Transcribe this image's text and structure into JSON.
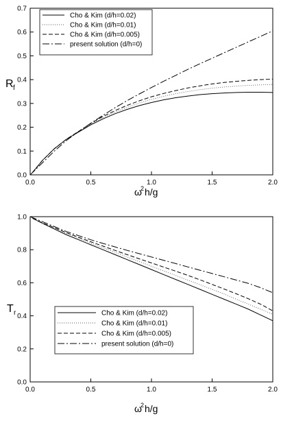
{
  "chart_data": [
    {
      "type": "line",
      "ylabel": "R_f",
      "xlabel": "ω^2h/g",
      "xlim": [
        0.0,
        2.0
      ],
      "ylim": [
        0.0,
        0.7
      ],
      "xticks": [
        "0.0",
        "0.5",
        "1.0",
        "1.5",
        "2.0"
      ],
      "yticks": [
        "0.0",
        "0.1",
        "0.2",
        "0.3",
        "0.4",
        "0.5",
        "0.6",
        "0.7"
      ],
      "legend_position": "top-left",
      "grid": false,
      "series": [
        {
          "name": "Cho & Kim (d/h=0.02)",
          "style": "solid",
          "x": [
            0.02,
            0.1,
            0.2,
            0.3,
            0.4,
            0.5,
            0.6,
            0.7,
            0.8,
            0.9,
            1.0,
            1.1,
            1.2,
            1.3,
            1.4,
            1.5,
            1.6,
            1.7,
            1.8,
            1.9,
            2.0
          ],
          "y": [
            0.01,
            0.06,
            0.11,
            0.15,
            0.18,
            0.21,
            0.235,
            0.257,
            0.275,
            0.291,
            0.304,
            0.315,
            0.324,
            0.331,
            0.337,
            0.341,
            0.344,
            0.346,
            0.347,
            0.347,
            0.346
          ]
        },
        {
          "name": "Cho & Kim (d/h=0.01)",
          "style": "dotted",
          "x": [
            0.02,
            0.1,
            0.2,
            0.3,
            0.4,
            0.5,
            0.6,
            0.7,
            0.8,
            0.9,
            1.0,
            1.1,
            1.2,
            1.3,
            1.4,
            1.5,
            1.6,
            1.7,
            1.8,
            1.9,
            2.0
          ],
          "y": [
            0.01,
            0.06,
            0.11,
            0.15,
            0.182,
            0.213,
            0.24,
            0.264,
            0.284,
            0.302,
            0.317,
            0.33,
            0.341,
            0.35,
            0.358,
            0.364,
            0.369,
            0.373,
            0.376,
            0.378,
            0.38
          ]
        },
        {
          "name": "Cho & Kim (d/h=0.005)",
          "style": "dashed",
          "x": [
            0.02,
            0.1,
            0.2,
            0.3,
            0.4,
            0.5,
            0.6,
            0.7,
            0.8,
            0.9,
            1.0,
            1.1,
            1.2,
            1.3,
            1.4,
            1.5,
            1.6,
            1.7,
            1.8,
            1.9,
            2.0
          ],
          "y": [
            0.01,
            0.06,
            0.11,
            0.15,
            0.183,
            0.216,
            0.245,
            0.27,
            0.292,
            0.311,
            0.328,
            0.342,
            0.354,
            0.365,
            0.374,
            0.382,
            0.388,
            0.393,
            0.397,
            0.4,
            0.402
          ]
        },
        {
          "name": "present solution (d/h=0)",
          "style": "dashdot",
          "x": [
            0.0,
            0.1,
            0.2,
            0.3,
            0.4,
            0.5,
            0.6,
            0.7,
            0.8,
            0.9,
            1.0,
            1.1,
            1.2,
            1.3,
            1.4,
            1.5,
            1.6,
            1.7,
            1.8,
            1.9,
            2.0
          ],
          "y": [
            0.0,
            0.05,
            0.1,
            0.145,
            0.182,
            0.217,
            0.25,
            0.282,
            0.312,
            0.34,
            0.367,
            0.393,
            0.418,
            0.443,
            0.467,
            0.49,
            0.513,
            0.536,
            0.559,
            0.582,
            0.605
          ]
        }
      ]
    },
    {
      "type": "line",
      "ylabel": "T_r",
      "xlabel": "ω^2h/g",
      "xlim": [
        0.0,
        2.0
      ],
      "ylim": [
        0.0,
        1.0
      ],
      "xticks": [
        "0.0",
        "0.5",
        "1.0",
        "1.5",
        "2.0"
      ],
      "yticks": [
        "0.0",
        "0.2",
        "0.4",
        "0.6",
        "0.8",
        "1.0"
      ],
      "legend_position": "bottom-left",
      "grid": false,
      "series": [
        {
          "name": "Cho & Kim (d/h=0.02)",
          "style": "solid",
          "x": [
            0.02,
            0.1,
            0.2,
            0.3,
            0.4,
            0.5,
            0.6,
            0.7,
            0.8,
            0.9,
            1.0,
            1.1,
            1.2,
            1.3,
            1.4,
            1.5,
            1.6,
            1.7,
            1.8,
            1.9,
            2.0
          ],
          "y": [
            0.99,
            0.96,
            0.925,
            0.89,
            0.86,
            0.83,
            0.8,
            0.77,
            0.74,
            0.71,
            0.68,
            0.65,
            0.62,
            0.59,
            0.56,
            0.53,
            0.5,
            0.47,
            0.44,
            0.405,
            0.37
          ]
        },
        {
          "name": "Cho & Kim (d/h=0.01)",
          "style": "dotted",
          "x": [
            0.02,
            0.1,
            0.2,
            0.3,
            0.4,
            0.5,
            0.6,
            0.7,
            0.8,
            0.9,
            1.0,
            1.1,
            1.2,
            1.3,
            1.4,
            1.5,
            1.6,
            1.7,
            1.8,
            1.9,
            2.0
          ],
          "y": [
            0.99,
            0.962,
            0.93,
            0.898,
            0.869,
            0.84,
            0.812,
            0.784,
            0.756,
            0.728,
            0.7,
            0.672,
            0.644,
            0.616,
            0.588,
            0.56,
            0.532,
            0.5,
            0.47,
            0.44,
            0.41
          ]
        },
        {
          "name": "Cho & Kim (d/h=0.005)",
          "style": "dashed",
          "x": [
            0.02,
            0.1,
            0.2,
            0.3,
            0.4,
            0.5,
            0.6,
            0.7,
            0.8,
            0.9,
            1.0,
            1.1,
            1.2,
            1.3,
            1.4,
            1.5,
            1.6,
            1.7,
            1.8,
            1.9,
            2.0
          ],
          "y": [
            0.99,
            0.963,
            0.933,
            0.903,
            0.875,
            0.848,
            0.822,
            0.796,
            0.77,
            0.745,
            0.72,
            0.695,
            0.67,
            0.645,
            0.618,
            0.59,
            0.562,
            0.533,
            0.503,
            0.47,
            0.43
          ]
        },
        {
          "name": "present solution (d/h=0)",
          "style": "dashdot",
          "x": [
            0.0,
            0.1,
            0.2,
            0.3,
            0.4,
            0.5,
            0.6,
            0.7,
            0.8,
            0.9,
            1.0,
            1.1,
            1.2,
            1.3,
            1.4,
            1.5,
            1.6,
            1.7,
            1.8,
            1.9,
            2.0
          ],
          "y": [
            1.0,
            0.97,
            0.94,
            0.91,
            0.885,
            0.86,
            0.838,
            0.817,
            0.796,
            0.776,
            0.756,
            0.736,
            0.716,
            0.696,
            0.676,
            0.656,
            0.636,
            0.616,
            0.596,
            0.57,
            0.54
          ]
        }
      ]
    }
  ],
  "colors": {
    "axis": "#000000",
    "line": "#000000",
    "background": "#ffffff"
  }
}
